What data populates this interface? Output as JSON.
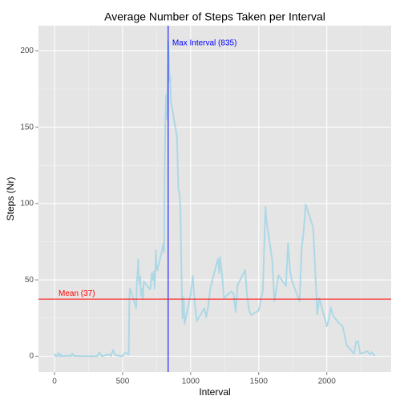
{
  "chart_data": {
    "type": "line",
    "title": "Average Number of Steps Taken per Interval",
    "x_label": "Interval",
    "y_label": "Steps (Nr)",
    "x": [
      0,
      5,
      10,
      15,
      20,
      25,
      30,
      35,
      40,
      45,
      50,
      55,
      100,
      110,
      120,
      130,
      140,
      150,
      200,
      215,
      230,
      245,
      300,
      315,
      330,
      345,
      400,
      415,
      430,
      445,
      500,
      515,
      530,
      545,
      550,
      555,
      600,
      605,
      610,
      615,
      620,
      625,
      630,
      635,
      640,
      645,
      650,
      655,
      700,
      705,
      710,
      715,
      720,
      725,
      730,
      735,
      740,
      745,
      750,
      755,
      800,
      805,
      810,
      815,
      820,
      825,
      830,
      835,
      840,
      845,
      850,
      855,
      900,
      905,
      910,
      915,
      920,
      925,
      930,
      935,
      940,
      945,
      950,
      955,
      1000,
      1015,
      1030,
      1045,
      1100,
      1115,
      1130,
      1145,
      1200,
      1210,
      1215,
      1230,
      1245,
      1300,
      1315,
      1330,
      1345,
      1400,
      1415,
      1430,
      1445,
      1500,
      1515,
      1530,
      1545,
      1550,
      1555,
      1600,
      1615,
      1630,
      1645,
      1700,
      1715,
      1730,
      1745,
      1800,
      1815,
      1830,
      1845,
      1900,
      1915,
      1930,
      1945,
      2000,
      2015,
      2030,
      2045,
      2100,
      2115,
      2130,
      2145,
      2200,
      2215,
      2230,
      2245,
      2300,
      2315,
      2330,
      2345,
      2355
    ],
    "series": [
      {
        "color": "#add8e6",
        "values": [
          1.7,
          0.3,
          0.1,
          0.2,
          0.1,
          2.1,
          0.5,
          0.9,
          0,
          1.5,
          0.3,
          0.1,
          0.4,
          0.2,
          0,
          1.8,
          0.2,
          0.3,
          0,
          0,
          0,
          0,
          0,
          0,
          2.6,
          0.1,
          1.2,
          0.2,
          4.1,
          0.8,
          0,
          2.2,
          2.1,
          1.0,
          39.5,
          44.5,
          31.5,
          49.3,
          53.8,
          63.5,
          50,
          47.1,
          52.2,
          39.3,
          44,
          44.2,
          37.4,
          49,
          43.8,
          44.4,
          50.5,
          54.5,
          49.9,
          51,
          55.7,
          44.3,
          52.3,
          69.5,
          57.8,
          56.2,
          73.4,
          68.2,
          129.4,
          157.5,
          171.2,
          155.4,
          177.3,
          206.2,
          195.9,
          179.6,
          183.4,
          167,
          143.5,
          124,
          109.1,
          108.1,
          103.7,
          96,
          66.2,
          45.2,
          24.8,
          38.8,
          35,
          21.1,
          40.6,
          52.7,
          35,
          23,
          31.4,
          25.5,
          33.4,
          44.6,
          63.9,
          54.1,
          65,
          54.2,
          38,
          42.5,
          41,
          28.9,
          46.7,
          56.4,
          38.9,
          30,
          27,
          30,
          36.6,
          43,
          85,
          98,
          90,
          62,
          36,
          44,
          53,
          46,
          74,
          56,
          49,
          36,
          70,
          82,
          99.5,
          84,
          56,
          27.4,
          38,
          19.6,
          24.3,
          32,
          26.5,
          20.7,
          20,
          14.2,
          7.4,
          1.6,
          9.4,
          9.8,
          1.6,
          3.3,
          1.1,
          2.6,
          0.7,
          1.1
        ]
      }
    ],
    "annotations": [
      {
        "label": "Max Interval (835)",
        "axis": "x",
        "value": 835,
        "color": "#0000ff"
      },
      {
        "label": "Mean (37)",
        "axis": "y",
        "value": 37.38,
        "color": "#ff0000"
      }
    ],
    "xlim": [
      -117.75,
      2472.75
    ],
    "xticks": [
      0,
      500,
      1000,
      1500,
      2000
    ],
    "xminor": [
      250,
      750,
      1250,
      1750,
      2250
    ],
    "ylim": [
      -10.3,
      216.5
    ],
    "yticks": [
      0,
      50,
      100,
      150,
      200
    ],
    "yminor": [
      25,
      75,
      125,
      175
    ],
    "grid": true
  }
}
